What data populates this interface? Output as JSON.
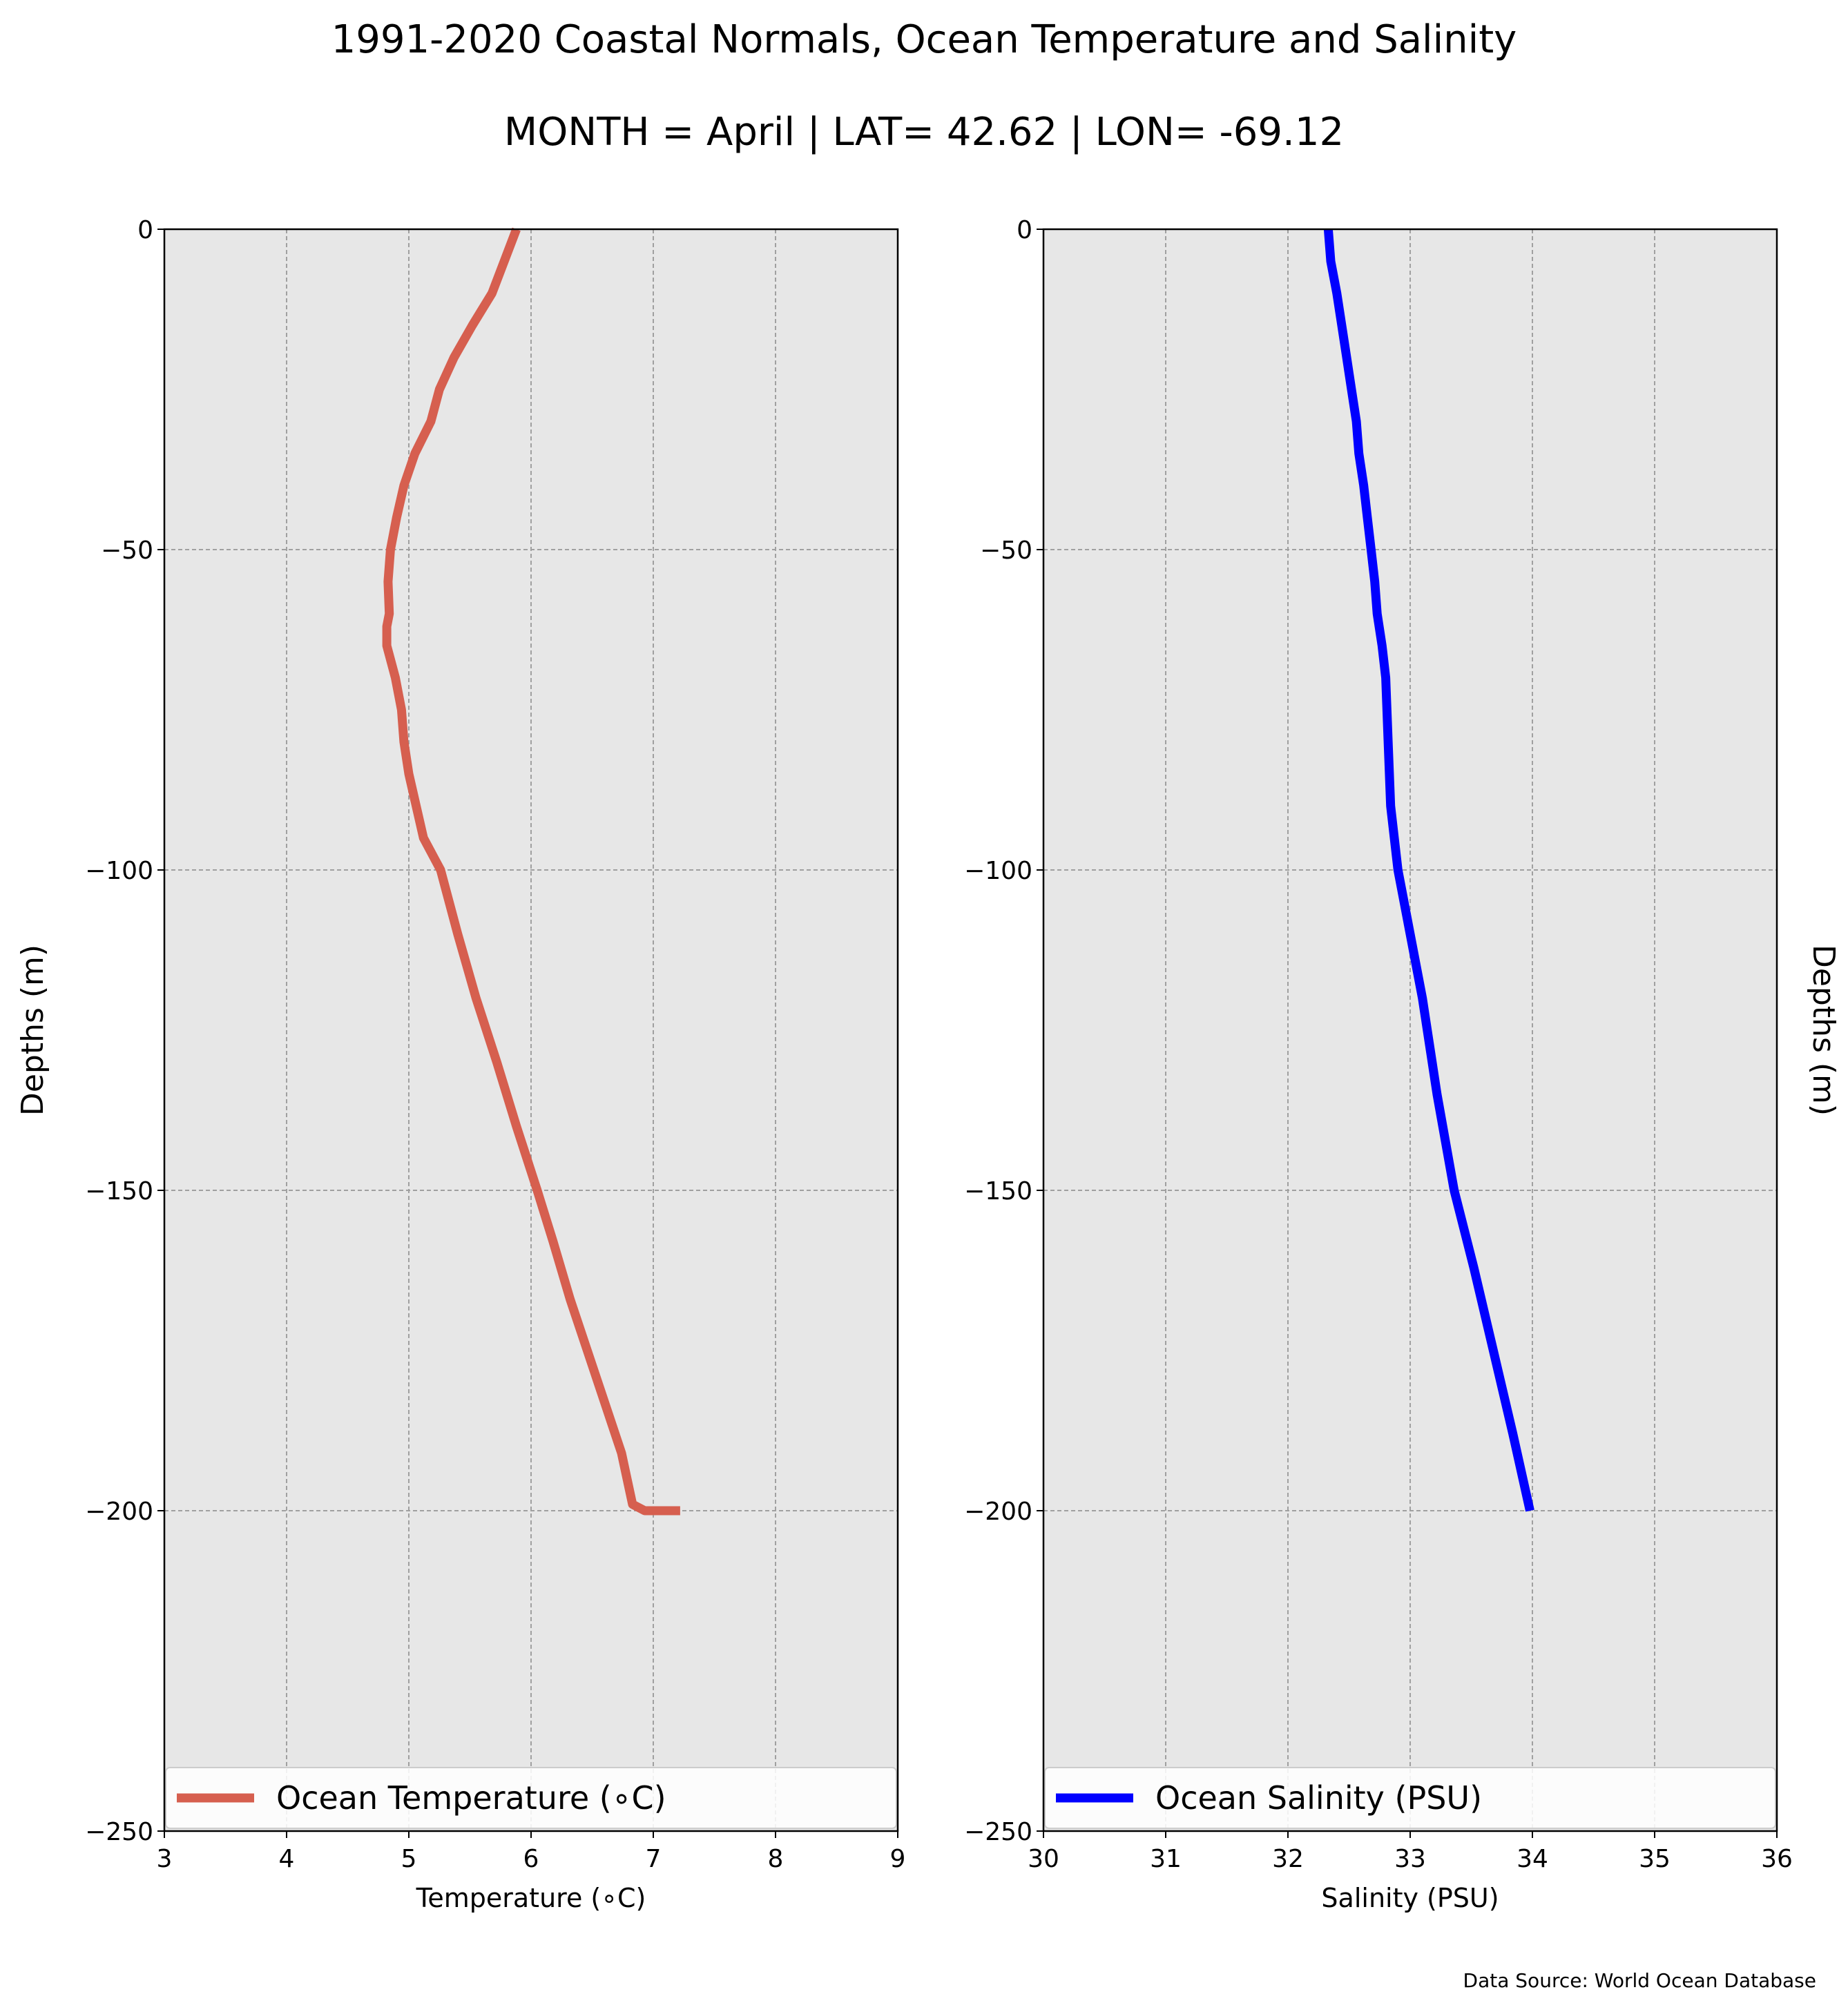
{
  "figure": {
    "title": "1991-2020 Coastal Normals, Ocean Temperature and Salinity",
    "subtitle": "MONTH = April | LAT= 42.62 | LON= -69.12",
    "source_note": "Data Source: World Ocean Database"
  },
  "chart_data": [
    {
      "type": "line",
      "xlabel": "Temperature (∘C)",
      "ylabel": "Depths (m)",
      "ylabel_side": "left",
      "xlim": [
        3,
        9
      ],
      "ylim": [
        -250,
        0
      ],
      "x_ticks": [
        "3",
        "4",
        "5",
        "6",
        "7",
        "8",
        "9"
      ],
      "y_ticks": [
        "0",
        "−50",
        "−100",
        "−150",
        "−200",
        "−250"
      ],
      "grid": true,
      "legend_position": "bottom",
      "series": [
        {
          "name": "Ocean Temperature (∘C)",
          "color": "#d65f4f",
          "x": [
            5.88,
            5.78,
            5.68,
            5.52,
            5.37,
            5.25,
            5.18,
            5.05,
            4.96,
            4.9,
            4.85,
            4.83,
            4.84,
            4.82,
            4.82,
            4.89,
            4.94,
            4.96,
            5.0,
            5.06,
            5.12,
            5.26,
            5.4,
            5.55,
            5.72,
            5.88,
            6.05,
            6.18,
            6.32,
            6.46,
            6.6,
            6.74,
            6.83,
            6.93,
            7.02,
            7.12,
            7.22
          ],
          "y": [
            0,
            -5,
            -10,
            -15,
            -20,
            -25,
            -30,
            -35,
            -40,
            -45,
            -50,
            -55,
            -60,
            -62,
            -65,
            -70,
            -75,
            -80,
            -85,
            -90,
            -95,
            -100,
            -110,
            -120,
            -130,
            -140,
            -150,
            -158,
            -167,
            -175,
            -183,
            -191,
            -199,
            -200,
            -200,
            -200,
            -200
          ]
        }
      ]
    },
    {
      "type": "line",
      "xlabel": "Salinity (PSU)",
      "ylabel": "Depths (m)",
      "ylabel_side": "right",
      "xlim": [
        30,
        36
      ],
      "ylim": [
        -250,
        0
      ],
      "x_ticks": [
        "30",
        "31",
        "32",
        "33",
        "34",
        "35",
        "36"
      ],
      "y_ticks": [
        "0",
        "−50",
        "−100",
        "−150",
        "−200",
        "−250"
      ],
      "grid": true,
      "legend_position": "bottom",
      "series": [
        {
          "name": "Ocean Salinity (PSU)",
          "color": "#0000ff",
          "x": [
            32.33,
            32.35,
            32.4,
            32.44,
            32.48,
            32.52,
            32.56,
            32.58,
            32.62,
            32.65,
            32.68,
            32.71,
            32.73,
            32.77,
            32.8,
            32.82,
            32.84,
            32.87,
            32.9,
            33.0,
            33.1,
            33.22,
            33.36,
            33.52,
            33.68,
            33.84,
            33.98
          ],
          "y": [
            0,
            -5,
            -10,
            -15,
            -20,
            -25,
            -30,
            -35,
            -40,
            -45,
            -50,
            -55,
            -60,
            -65,
            -70,
            -80,
            -90,
            -95,
            -100,
            -110,
            -120,
            -135,
            -150,
            -162,
            -175,
            -188,
            -200
          ]
        }
      ]
    }
  ]
}
